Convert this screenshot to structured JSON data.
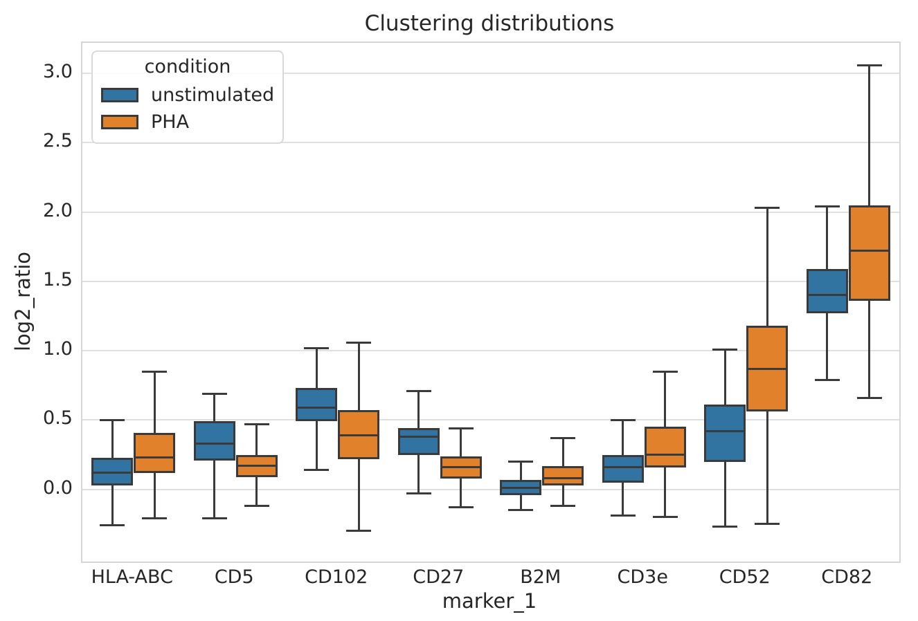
{
  "figure": {
    "title": "Clustering distributions",
    "xlabel": "marker_1",
    "ylabel": "log2_ratio"
  },
  "legend": {
    "title": "condition",
    "items": [
      {
        "label": "unstimulated",
        "color": "#3274a1"
      },
      {
        "label": "PHA",
        "color": "#e1812c"
      }
    ]
  },
  "chart_data": {
    "type": "boxplot",
    "title": "Clustering distributions",
    "xlabel": "marker_1",
    "ylabel": "log2_ratio",
    "grid": true,
    "legend_position": "upper left",
    "categories": [
      "HLA-ABC",
      "CD5",
      "CD102",
      "CD27",
      "B2M",
      "CD3e",
      "CD52",
      "CD82"
    ],
    "yticks": [
      0.0,
      0.5,
      1.0,
      1.5,
      2.0,
      2.5,
      3.0
    ],
    "ylim": [
      -0.52,
      3.22
    ],
    "series": [
      {
        "name": "unstimulated",
        "color": "#3274a1",
        "boxes": [
          {
            "whislo": -0.26,
            "q1": 0.03,
            "med": 0.12,
            "q3": 0.23,
            "whishi": 0.5
          },
          {
            "whislo": -0.21,
            "q1": 0.21,
            "med": 0.33,
            "q3": 0.49,
            "whishi": 0.69
          },
          {
            "whislo": 0.14,
            "q1": 0.49,
            "med": 0.59,
            "q3": 0.73,
            "whishi": 1.02
          },
          {
            "whislo": -0.03,
            "q1": 0.25,
            "med": 0.38,
            "q3": 0.44,
            "whishi": 0.71
          },
          {
            "whislo": -0.15,
            "q1": -0.04,
            "med": 0.01,
            "q3": 0.07,
            "whishi": 0.2
          },
          {
            "whislo": -0.19,
            "q1": 0.05,
            "med": 0.16,
            "q3": 0.25,
            "whishi": 0.5
          },
          {
            "whislo": -0.27,
            "q1": 0.2,
            "med": 0.42,
            "q3": 0.61,
            "whishi": 1.01
          },
          {
            "whislo": 0.79,
            "q1": 1.27,
            "med": 1.4,
            "q3": 1.59,
            "whishi": 2.04
          }
        ]
      },
      {
        "name": "PHA",
        "color": "#e1812c",
        "boxes": [
          {
            "whislo": -0.21,
            "q1": 0.12,
            "med": 0.23,
            "q3": 0.41,
            "whishi": 0.85
          },
          {
            "whislo": -0.12,
            "q1": 0.09,
            "med": 0.17,
            "q3": 0.25,
            "whishi": 0.47
          },
          {
            "whislo": -0.3,
            "q1": 0.22,
            "med": 0.39,
            "q3": 0.57,
            "whishi": 1.06
          },
          {
            "whislo": -0.13,
            "q1": 0.08,
            "med": 0.16,
            "q3": 0.24,
            "whishi": 0.44
          },
          {
            "whislo": -0.12,
            "q1": 0.03,
            "med": 0.08,
            "q3": 0.17,
            "whishi": 0.37
          },
          {
            "whislo": -0.2,
            "q1": 0.16,
            "med": 0.25,
            "q3": 0.45,
            "whishi": 0.85
          },
          {
            "whislo": -0.25,
            "q1": 0.56,
            "med": 0.87,
            "q3": 1.18,
            "whishi": 2.03
          },
          {
            "whislo": 0.66,
            "q1": 1.36,
            "med": 1.72,
            "q3": 2.05,
            "whishi": 3.06
          }
        ]
      }
    ]
  }
}
